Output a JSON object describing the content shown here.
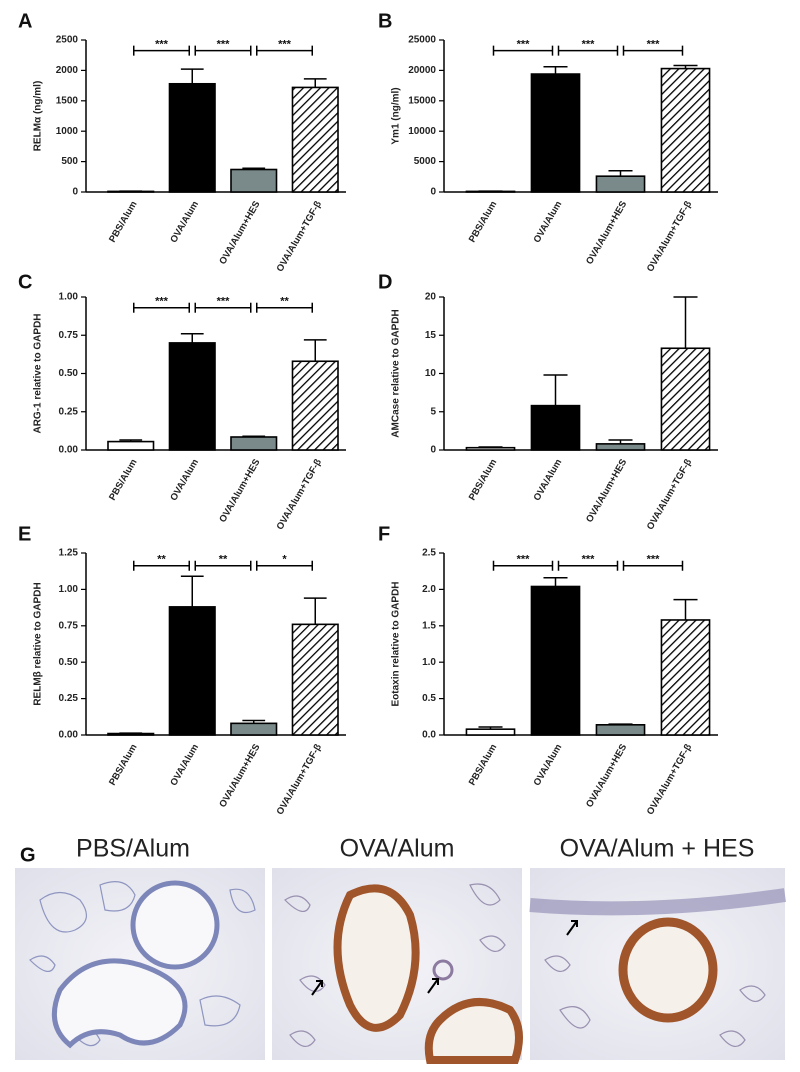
{
  "chart_data": [
    {
      "type": "bar",
      "label": "A",
      "y_label": "RELMα (ng/ml)",
      "categories": [
        "PBS/Alum",
        "OVA/Alum",
        "OVA/Alum+HES",
        "OVA/Alum+TGF-β"
      ],
      "values": [
        10,
        1780,
        370,
        1720
      ],
      "errors": [
        5,
        240,
        20,
        140
      ],
      "colors": [
        "#ffffff",
        "#000000",
        "#7a8a8a",
        "#ffffff"
      ],
      "hatch": [
        false,
        false,
        false,
        true
      ],
      "ylim": [
        0,
        2500
      ],
      "yticks": [
        0,
        500,
        1000,
        1500,
        2000,
        2500
      ],
      "annotations": [
        "***",
        "***",
        "***"
      ]
    },
    {
      "type": "bar",
      "label": "B",
      "y_label": "Ym1 (ng/ml)",
      "categories": [
        "PBS/Alum",
        "OVA/Alum",
        "OVA/Alum+HES",
        "OVA/Alum+TGF-β"
      ],
      "values": [
        100,
        19400,
        2600,
        20300
      ],
      "errors": [
        50,
        1200,
        900,
        500
      ],
      "colors": [
        "#ffffff",
        "#000000",
        "#7a8a8a",
        "#ffffff"
      ],
      "hatch": [
        false,
        false,
        false,
        true
      ],
      "ylim": [
        0,
        25000
      ],
      "yticks": [
        0,
        5000,
        10000,
        15000,
        20000,
        25000
      ],
      "annotations": [
        "***",
        "***",
        "***"
      ]
    },
    {
      "type": "bar",
      "label": "C",
      "y_label": "ARG-1 relative to GAPDH",
      "categories": [
        "PBS/Alum",
        "OVA/Alum",
        "OVA/Alum+HES",
        "OVA/Alum+TGF-β"
      ],
      "values": [
        0.055,
        0.7,
        0.085,
        0.58
      ],
      "errors": [
        0.01,
        0.06,
        0.005,
        0.14
      ],
      "colors": [
        "#ffffff",
        "#000000",
        "#7a8a8a",
        "#ffffff"
      ],
      "hatch": [
        false,
        false,
        false,
        true
      ],
      "ylim": [
        0,
        1
      ],
      "yticks": [
        {
          "value": 0,
          "label": "0.00"
        },
        0.25,
        {
          "value": 0.5,
          "label": "0.50"
        },
        0.75,
        {
          "value": 1,
          "label": "1.00"
        }
      ],
      "annotations": [
        "***",
        "***",
        "**"
      ]
    },
    {
      "type": "bar",
      "label": "D",
      "y_label": "AMCase relative to GAPDH",
      "categories": [
        "PBS/Alum",
        "OVA/Alum",
        "OVA/Alum+HES",
        "OVA/Alum+TGF-β"
      ],
      "values": [
        0.3,
        5.8,
        0.8,
        13.3
      ],
      "errors": [
        0.1,
        4.0,
        0.5,
        6.7
      ],
      "colors": [
        "#ffffff",
        "#000000",
        "#7a8a8a",
        "#ffffff"
      ],
      "hatch": [
        false,
        false,
        false,
        true
      ],
      "ylim": [
        0,
        20
      ],
      "yticks": [
        0,
        5,
        10,
        15,
        20
      ],
      "annotations": []
    },
    {
      "type": "bar",
      "label": "E",
      "y_label": "RELMβ relative to GAPDH",
      "categories": [
        "PBS/Alum",
        "OVA/Alum",
        "OVA/Alum+HES",
        "OVA/Alum+TGF-β"
      ],
      "values": [
        0.01,
        0.88,
        0.08,
        0.76
      ],
      "errors": [
        0.003,
        0.21,
        0.02,
        0.18
      ],
      "colors": [
        "#ffffff",
        "#000000",
        "#7a8a8a",
        "#ffffff"
      ],
      "hatch": [
        false,
        false,
        false,
        true
      ],
      "ylim": [
        0,
        1.25
      ],
      "yticks": [
        {
          "value": 0,
          "label": "0.00"
        },
        0.25,
        {
          "value": 0.5,
          "label": "0.50"
        },
        0.75,
        {
          "value": 1,
          "label": "1.00"
        },
        1.25
      ],
      "annotations": [
        "**",
        "**",
        "*"
      ]
    },
    {
      "type": "bar",
      "label": "F",
      "y_label": "Eotaxin relative to GAPDH",
      "categories": [
        "PBS/Alum",
        "OVA/Alum",
        "OVA/Alum+HES",
        "OVA/Alum+TGF-β"
      ],
      "values": [
        0.08,
        2.04,
        0.14,
        1.58
      ],
      "errors": [
        0.03,
        0.12,
        0.01,
        0.28
      ],
      "colors": [
        "#ffffff",
        "#000000",
        "#7a8a8a",
        "#ffffff"
      ],
      "hatch": [
        false,
        false,
        false,
        true
      ],
      "ylim": [
        0,
        2.5
      ],
      "yticks": [
        {
          "value": 0,
          "label": "0.0"
        },
        0.5,
        {
          "value": 1,
          "label": "1.0"
        },
        1.5,
        {
          "value": 2,
          "label": "2.0"
        },
        2.5
      ],
      "annotations": [
        "***",
        "***",
        "***"
      ]
    }
  ],
  "panel_g": {
    "label": "G",
    "titles": [
      "PBS/Alum",
      "OVA/Alum",
      "OVA/Alum + HES"
    ]
  }
}
